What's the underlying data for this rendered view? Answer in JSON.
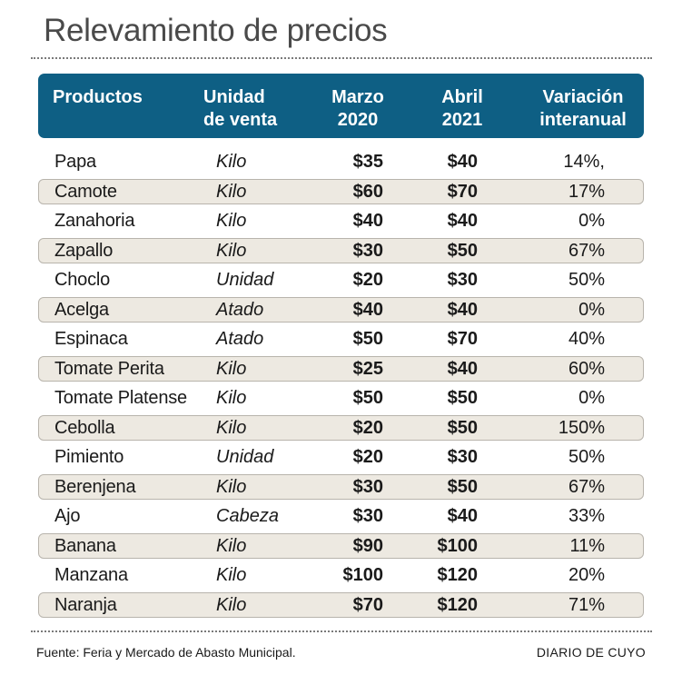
{
  "title": "Relevamiento de precios",
  "header": {
    "productos": "Productos",
    "unidad": "Unidad",
    "de_venta": "de venta",
    "marzo": "Marzo",
    "y2020": "2020",
    "abril": "Abril",
    "y2021": "2021",
    "variacion": "Variación",
    "interanual": "interanual"
  },
  "rows": [
    {
      "producto": "Papa",
      "unidad": "Kilo",
      "marzo": "$35",
      "abril": "$40",
      "variacion": "14%,"
    },
    {
      "producto": "Camote",
      "unidad": "Kilo",
      "marzo": "$60",
      "abril": "$70",
      "variacion": "17%"
    },
    {
      "producto": "Zanahoria",
      "unidad": "Kilo",
      "marzo": "$40",
      "abril": "$40",
      "variacion": "0%"
    },
    {
      "producto": "Zapallo",
      "unidad": "Kilo",
      "marzo": "$30",
      "abril": "$50",
      "variacion": "67%"
    },
    {
      "producto": "Choclo",
      "unidad": "Unidad",
      "marzo": "$20",
      "abril": "$30",
      "variacion": "50%"
    },
    {
      "producto": "Acelga",
      "unidad": "Atado",
      "marzo": "$40",
      "abril": "$40",
      "variacion": "0%"
    },
    {
      "producto": "Espinaca",
      "unidad": "Atado",
      "marzo": "$50",
      "abril": "$70",
      "variacion": "40%"
    },
    {
      "producto": "Tomate Perita",
      "unidad": "Kilo",
      "marzo": "$25",
      "abril": "$40",
      "variacion": "60%"
    },
    {
      "producto": "Tomate Platense",
      "unidad": "Kilo",
      "marzo": "$50",
      "abril": "$50",
      "variacion": "0%"
    },
    {
      "producto": "Cebolla",
      "unidad": "Kilo",
      "marzo": "$20",
      "abril": "$50",
      "variacion": "150%"
    },
    {
      "producto": "Pimiento",
      "unidad": "Unidad",
      "marzo": "$20",
      "abril": "$30",
      "variacion": "50%"
    },
    {
      "producto": "Berenjena",
      "unidad": "Kilo",
      "marzo": "$30",
      "abril": "$50",
      "variacion": "67%"
    },
    {
      "producto": "Ajo",
      "unidad": "Cabeza",
      "marzo": "$30",
      "abril": "$40",
      "variacion": "33%"
    },
    {
      "producto": "Banana",
      "unidad": "Kilo",
      "marzo": "$90",
      "abril": "$100",
      "variacion": "11%"
    },
    {
      "producto": "Manzana",
      "unidad": "Kilo",
      "marzo": "$100",
      "abril": "$120",
      "variacion": "20%"
    },
    {
      "producto": "Naranja",
      "unidad": "Kilo",
      "marzo": "$70",
      "abril": "$120",
      "variacion": "71%"
    }
  ],
  "footer": {
    "source": "Fuente: Feria y Mercado de Abasto Municipal.",
    "brand": "DIARIO DE CUYO"
  },
  "colors": {
    "header_bg": "#0e5f84",
    "band_bg": "#ede9e1"
  }
}
